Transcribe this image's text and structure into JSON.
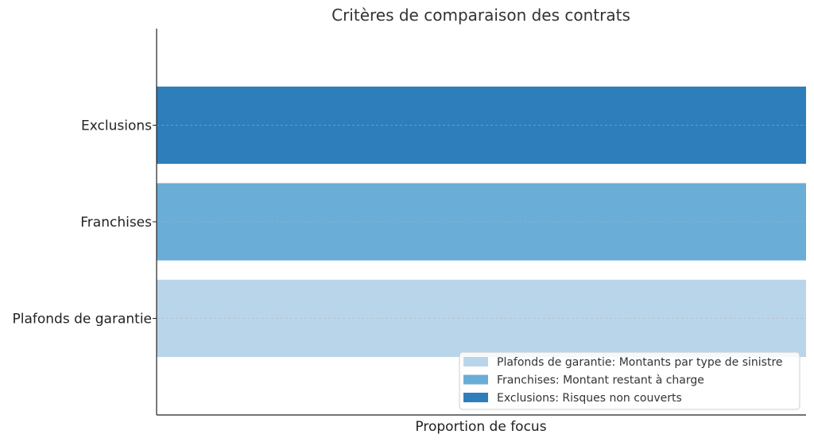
{
  "chart_data": {
    "type": "bar",
    "orientation": "horizontal",
    "title": "Critères de comparaison des contrats",
    "xlabel": "Proportion de focus",
    "ylabel": "",
    "categories": [
      "Plafonds de garantie",
      "Franchises",
      "Exclusions"
    ],
    "values": [
      1,
      1,
      1
    ],
    "xlim": [
      0,
      1
    ],
    "colors": [
      "#b9d5ea",
      "#6aadd6",
      "#2e7ebc"
    ],
    "grid": "horizontal dashed at category centers",
    "legend": {
      "placement": "lower right",
      "entries": [
        {
          "label": "Plafonds de garantie: Montants par type de sinistre",
          "color": "#b9d5ea"
        },
        {
          "label": "Franchises: Montant restant à charge",
          "color": "#6aadd6"
        },
        {
          "label": "Exclusions: Risques non couverts",
          "color": "#2e7ebc"
        }
      ]
    }
  }
}
